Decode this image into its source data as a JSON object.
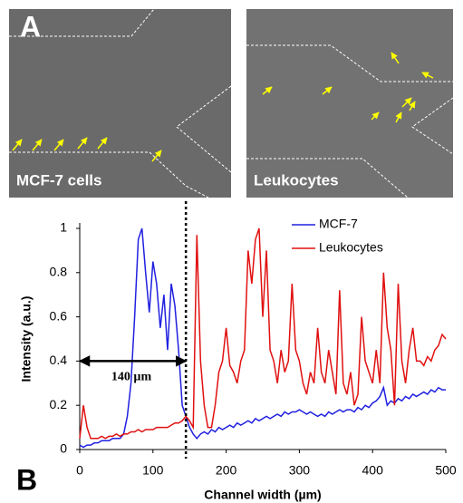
{
  "panel_a": {
    "label": "A",
    "images": [
      {
        "caption": "MCF-7 cells"
      },
      {
        "caption": "Leukocytes"
      }
    ]
  },
  "panel_b": {
    "label": "B"
  },
  "chart_data": {
    "type": "line",
    "x_label": "Channel width (µm)",
    "y_label": "Intensity (a.u.)",
    "annotation": "140 µm",
    "annotation_range": [
      0,
      145
    ],
    "annotation_y": 0.4,
    "divider_x": 145,
    "x": [
      0,
      5,
      10,
      15,
      20,
      25,
      30,
      35,
      40,
      45,
      50,
      55,
      60,
      65,
      70,
      75,
      80,
      85,
      90,
      95,
      100,
      105,
      110,
      115,
      120,
      125,
      130,
      135,
      140,
      145,
      150,
      155,
      160,
      165,
      170,
      175,
      180,
      185,
      190,
      195,
      200,
      205,
      210,
      215,
      220,
      225,
      230,
      235,
      240,
      245,
      250,
      255,
      260,
      265,
      270,
      275,
      280,
      285,
      290,
      295,
      300,
      305,
      310,
      315,
      320,
      325,
      330,
      335,
      340,
      345,
      350,
      355,
      360,
      365,
      370,
      375,
      380,
      385,
      390,
      395,
      400,
      405,
      410,
      415,
      420,
      425,
      430,
      435,
      440,
      445,
      450,
      455,
      460,
      465,
      470,
      475,
      480,
      485,
      490,
      495,
      500
    ],
    "series": [
      {
        "name": "MCF-7",
        "color": "#2020e0",
        "values": [
          0.02,
          0.01,
          0.02,
          0.02,
          0.03,
          0.03,
          0.04,
          0.04,
          0.04,
          0.05,
          0.05,
          0.05,
          0.07,
          0.15,
          0.3,
          0.6,
          0.95,
          1.0,
          0.8,
          0.62,
          0.85,
          0.75,
          0.55,
          0.7,
          0.45,
          0.75,
          0.65,
          0.45,
          0.2,
          0.15,
          0.1,
          0.07,
          0.05,
          0.07,
          0.08,
          0.07,
          0.09,
          0.08,
          0.1,
          0.09,
          0.1,
          0.11,
          0.1,
          0.12,
          0.11,
          0.12,
          0.13,
          0.12,
          0.14,
          0.13,
          0.14,
          0.15,
          0.14,
          0.15,
          0.16,
          0.15,
          0.17,
          0.16,
          0.17,
          0.17,
          0.18,
          0.17,
          0.16,
          0.17,
          0.16,
          0.15,
          0.16,
          0.15,
          0.17,
          0.16,
          0.17,
          0.18,
          0.17,
          0.18,
          0.18,
          0.17,
          0.19,
          0.18,
          0.2,
          0.19,
          0.21,
          0.22,
          0.24,
          0.28,
          0.2,
          0.22,
          0.21,
          0.23,
          0.22,
          0.24,
          0.23,
          0.25,
          0.24,
          0.25,
          0.26,
          0.25,
          0.27,
          0.26,
          0.28,
          0.27,
          0.27
        ]
      },
      {
        "name": "Leukocytes",
        "color": "#e01010",
        "values": [
          0.05,
          0.2,
          0.1,
          0.05,
          0.05,
          0.05,
          0.06,
          0.05,
          0.06,
          0.06,
          0.07,
          0.06,
          0.07,
          0.07,
          0.08,
          0.08,
          0.09,
          0.08,
          0.09,
          0.09,
          0.09,
          0.1,
          0.1,
          0.1,
          0.1,
          0.11,
          0.12,
          0.12,
          0.13,
          0.15,
          0.13,
          0.1,
          0.97,
          0.4,
          0.2,
          0.1,
          0.1,
          0.2,
          0.35,
          0.4,
          0.55,
          0.38,
          0.35,
          0.3,
          0.4,
          0.45,
          0.9,
          0.75,
          0.95,
          1.0,
          0.6,
          0.9,
          0.45,
          0.4,
          0.3,
          0.45,
          0.35,
          0.4,
          0.75,
          0.45,
          0.4,
          0.3,
          0.25,
          0.35,
          0.3,
          0.55,
          0.35,
          0.3,
          0.45,
          0.35,
          0.25,
          0.72,
          0.3,
          0.25,
          0.35,
          0.2,
          0.25,
          0.6,
          0.4,
          0.35,
          0.3,
          0.45,
          0.3,
          0.8,
          0.55,
          0.45,
          0.2,
          0.75,
          0.4,
          0.3,
          0.45,
          0.55,
          0.4,
          0.4,
          0.38,
          0.42,
          0.4,
          0.45,
          0.47,
          0.52,
          0.5
        ]
      }
    ],
    "xlim": [
      0,
      500
    ],
    "xticks": [
      0,
      100,
      200,
      300,
      400,
      500
    ],
    "ylim": [
      0,
      1
    ],
    "yticks": [
      0,
      0.2,
      0.4,
      0.6,
      0.8,
      1
    ]
  }
}
